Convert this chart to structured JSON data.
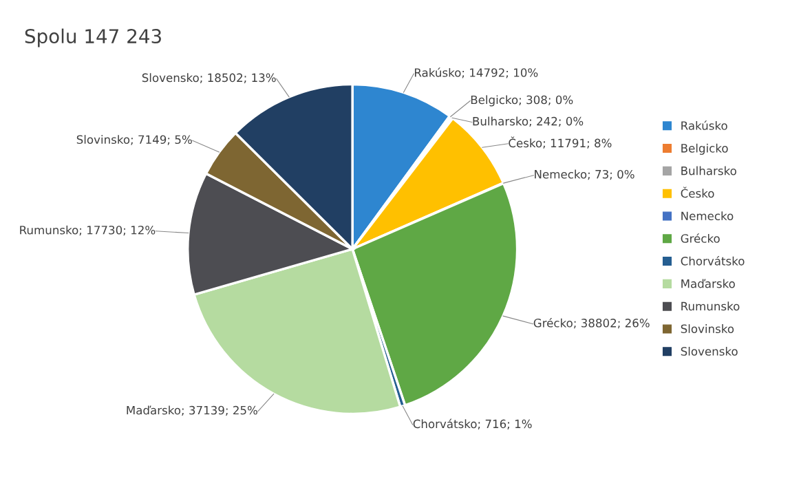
{
  "chart_data": {
    "type": "pie",
    "title": "Spolu 147 243",
    "categories": [
      "Rakúsko",
      "Belgicko",
      "Bulharsko",
      "Česko",
      "Nemecko",
      "Grécko",
      "Chorvátsko",
      "Maďarsko",
      "Rumunsko",
      "Slovinsko",
      "Slovensko"
    ],
    "values": [
      14792,
      308,
      242,
      11791,
      73,
      38802,
      716,
      37139,
      17730,
      7149,
      18502
    ],
    "value_labels": [
      "Rakúsko; 14792; 10%",
      "Belgicko; 308; 0%",
      "Bulharsko; 242; 0%",
      "Česko; 11791; 8%",
      "Nemecko; 73; 0%",
      "Grécko; 38802; 26%",
      "Chorvátsko; 716; 1%",
      "Maďarsko; 37139; 25%",
      "Rumunsko; 17730; 12%",
      "Slovinsko; 7149; 5%",
      "Slovensko; 18502; 13%"
    ],
    "colors": [
      "#2e86d0",
      "#ed7d31",
      "#a5a5a5",
      "#ffc000",
      "#4472c4",
      "#5fa845",
      "#255e91",
      "#b5dba0",
      "#4d4d52",
      "#7e6632",
      "#213f63"
    ],
    "legend": "right"
  }
}
